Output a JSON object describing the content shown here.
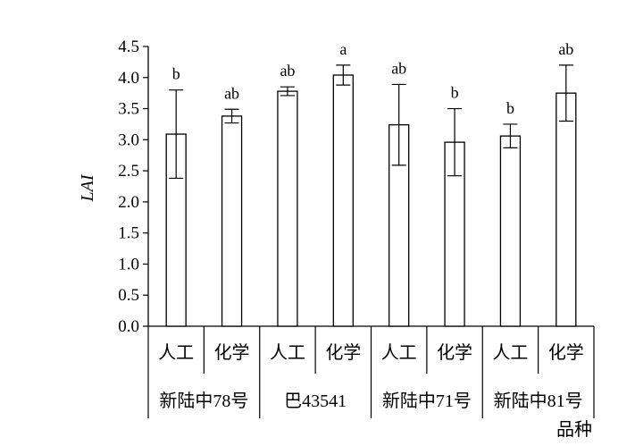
{
  "chart_data": {
    "type": "bar",
    "ylabel": "LAI",
    "xlabel": "品种",
    "ylim": [
      0,
      4.5
    ],
    "yticks": [
      "0.0",
      "0.5",
      "1.0",
      "1.5",
      "2.0",
      "2.5",
      "3.0",
      "3.5",
      "4.0",
      "4.5"
    ],
    "groups": [
      "新陆中78号",
      "巴43541",
      "新陆中71号",
      "新陆中81号"
    ],
    "treatments": [
      "人工",
      "化学"
    ],
    "bars": [
      {
        "group": "新陆中78号",
        "treatment": "人工",
        "value": 3.09,
        "error": 0.71,
        "significance": "b"
      },
      {
        "group": "新陆中78号",
        "treatment": "化学",
        "value": 3.38,
        "error": 0.11,
        "significance": "ab"
      },
      {
        "group": "巴43541",
        "treatment": "人工",
        "value": 3.78,
        "error": 0.07,
        "significance": "ab"
      },
      {
        "group": "巴43541",
        "treatment": "化学",
        "value": 4.04,
        "error": 0.16,
        "significance": "a"
      },
      {
        "group": "新陆中71号",
        "treatment": "人工",
        "value": 3.24,
        "error": 0.65,
        "significance": "ab"
      },
      {
        "group": "新陆中71号",
        "treatment": "化学",
        "value": 2.96,
        "error": 0.54,
        "significance": "b"
      },
      {
        "group": "新陆中81号",
        "treatment": "人工",
        "value": 3.06,
        "error": 0.19,
        "significance": "b"
      },
      {
        "group": "新陆中81号",
        "treatment": "化学",
        "value": 3.75,
        "error": 0.45,
        "significance": "ab"
      }
    ],
    "colors": {
      "bar_fill": "#ffffff",
      "stroke": "#000000"
    },
    "legend": "none",
    "grid": false
  }
}
